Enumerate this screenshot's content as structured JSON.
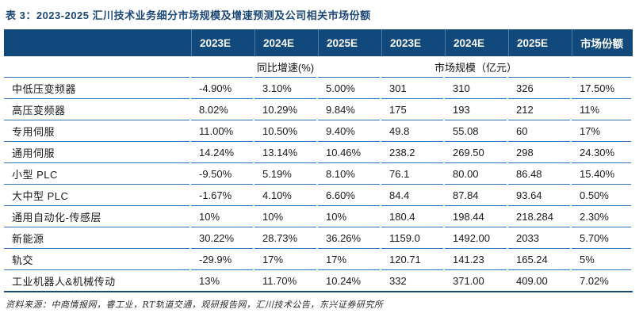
{
  "title": "表 3：2023-2025 汇川技术业务细分市场规模及增速预测及公司相关市场份额",
  "table": {
    "year_headers": [
      "2023E",
      "2024E",
      "2025E",
      "2023E",
      "2024E",
      "2025E"
    ],
    "share_header": "市场份额",
    "group_headers": {
      "growth": "同比增速(%)",
      "scale": "市场规模（亿元）"
    },
    "rows": [
      {
        "label": "中低压变频器",
        "values": [
          "-4.90%",
          "3.10%",
          "5.00%",
          "301",
          "310",
          "326",
          "17.50%"
        ]
      },
      {
        "label": "高压变频器",
        "values": [
          "8.02%",
          "10.29%",
          "9.84%",
          "175",
          "193",
          "212",
          "11%"
        ]
      },
      {
        "label": "专用伺服",
        "values": [
          "11.00%",
          "10.50%",
          "9.40%",
          "49.8",
          "55.08",
          "60",
          "17%"
        ]
      },
      {
        "label": "通用伺服",
        "values": [
          "14.24%",
          "13.14%",
          "10.46%",
          "238.2",
          "269.50",
          "298",
          "24.30%"
        ]
      },
      {
        "label": "小型 PLC",
        "values": [
          "-9.50%",
          "5.19%",
          "8.10%",
          "76.1",
          "80.00",
          "86.48",
          "15.40%"
        ]
      },
      {
        "label": "大中型 PLC",
        "values": [
          "-1.67%",
          "4.10%",
          "6.60%",
          "84.4",
          "87.84",
          "93.64",
          "0.50%"
        ]
      },
      {
        "label": "通用自动化-传感层",
        "values": [
          "10%",
          "10%",
          "10%",
          "180.4",
          "198.44",
          "218.284",
          "2.30%"
        ]
      },
      {
        "label": "新能源",
        "values": [
          "30.22%",
          "28.73%",
          "36.26%",
          "1159.0",
          "1492.00",
          "2033",
          "5.70%"
        ]
      },
      {
        "label": "轨交",
        "values": [
          "-29.9%",
          "17%",
          "17%",
          "120.71",
          "141.23",
          "165.24",
          "5%"
        ]
      },
      {
        "label": "工业机器人&机械传动",
        "values": [
          "13%",
          "11.70%",
          "10.24%",
          "332",
          "371.00",
          "409.00",
          "7.02%"
        ]
      }
    ]
  },
  "footer": "资料来源：中商情报网，睿工业，RT轨道交通，观研报告网，汇川技术公告，东兴证券研究所",
  "colors": {
    "header_bg": "#11497c",
    "header_divider": "#4e7ca9",
    "row_line": "#2e74b5",
    "bottom_rule": "#1b4a7a",
    "title_text": "#1c4877"
  }
}
